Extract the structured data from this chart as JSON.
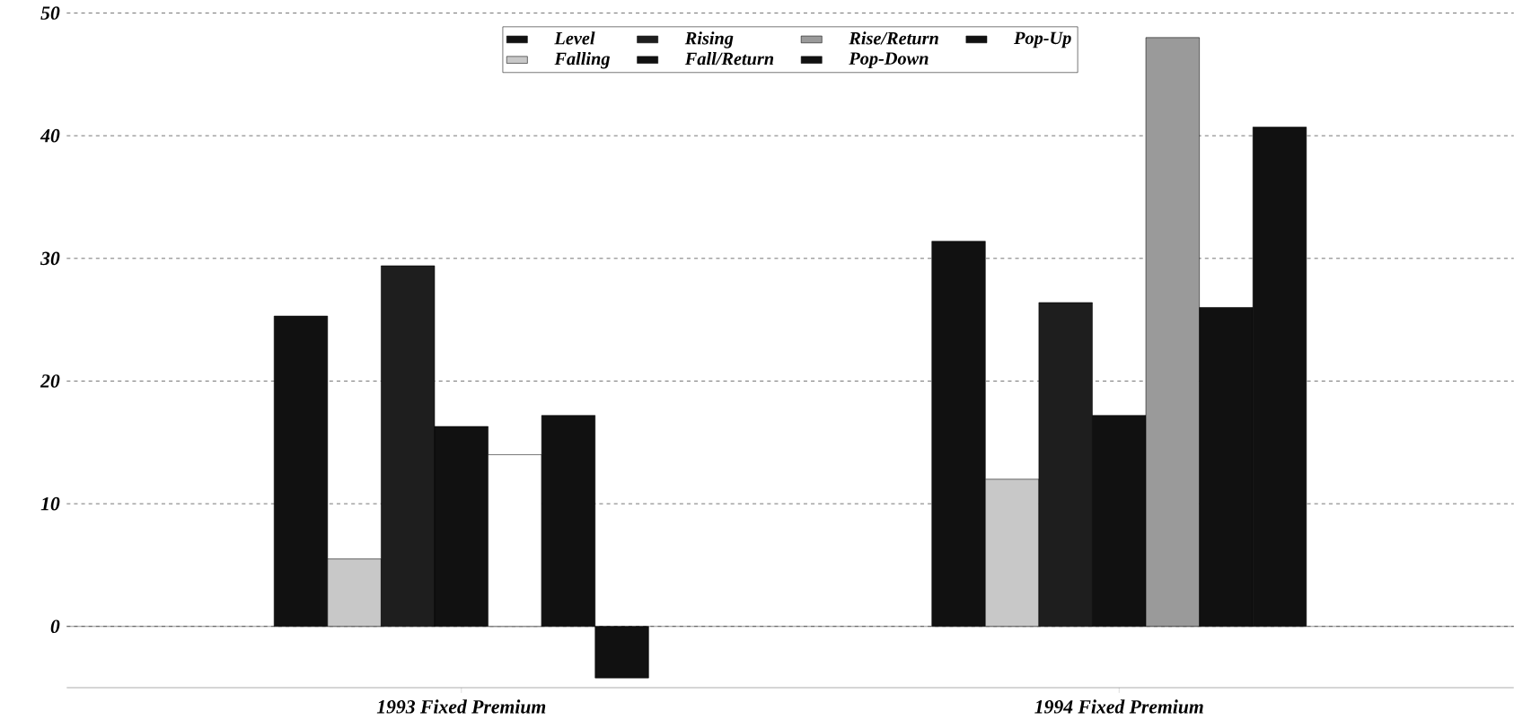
{
  "chart_data": {
    "type": "bar",
    "categories": [
      "1993 Fixed Premium",
      "1994 Fixed Premium"
    ],
    "series": [
      {
        "name": "Level",
        "color": "#111111",
        "values": [
          25.3,
          31.4
        ]
      },
      {
        "name": "Falling",
        "color": "#c8c8c8",
        "values": [
          5.5,
          12
        ]
      },
      {
        "name": "Rising",
        "color": "#1e1e1e",
        "values": [
          29.4,
          26.4
        ]
      },
      {
        "name": "Fall/Return",
        "color": "#111111",
        "values": [
          16.3,
          17.2
        ]
      },
      {
        "name": "Rise/Return",
        "colors": [
          "#ffffff",
          "#9a9a9a"
        ],
        "color": "#9a9a9a",
        "values": [
          14,
          48
        ]
      },
      {
        "name": "Pop-Down",
        "color": "#111111",
        "values": [
          17.2,
          26
        ]
      },
      {
        "name": "Pop-Up",
        "color": "#111111",
        "values": [
          -4.2,
          40.7
        ]
      }
    ],
    "ylim": [
      -5,
      50
    ],
    "yticks": [
      0,
      10,
      20,
      30,
      40,
      50
    ],
    "grid": "y",
    "legend": "top"
  }
}
